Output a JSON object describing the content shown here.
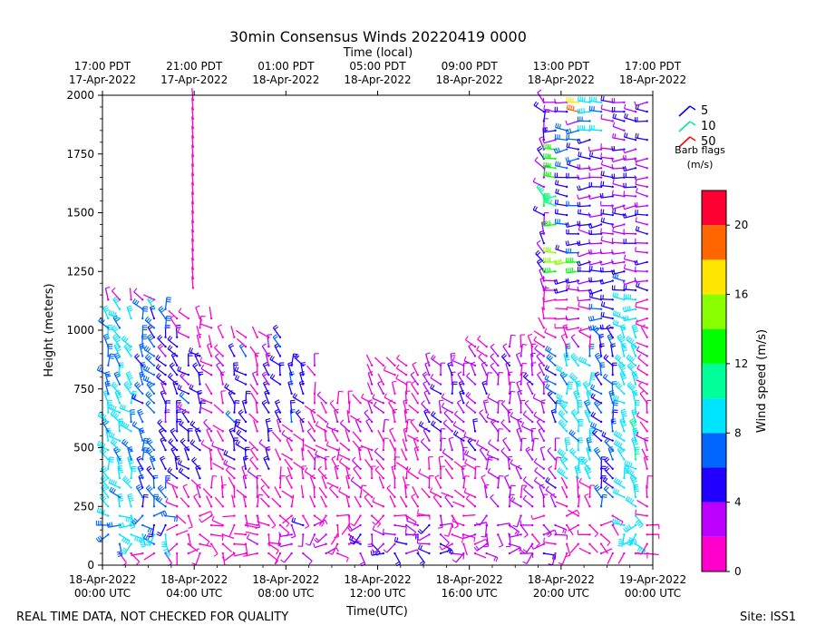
{
  "chart_data": {
    "type": "wind-barb-time-height",
    "title": "30min Consensus Winds 20220419 0000",
    "top_axis_label": "Time (local)",
    "xlabel": "Time(UTC)",
    "ylabel": "Height (meters)",
    "xlim_hours": [
      0,
      24
    ],
    "ylim": [
      0,
      2000
    ],
    "y_ticks": [
      0,
      250,
      500,
      750,
      1000,
      1250,
      1500,
      1750,
      2000
    ],
    "x_ticks": [
      {
        "hour": 0,
        "line1": "18-Apr-2022",
        "line2": "00:00 UTC"
      },
      {
        "hour": 4,
        "line1": "18-Apr-2022",
        "line2": "04:00 UTC"
      },
      {
        "hour": 8,
        "line1": "18-Apr-2022",
        "line2": "08:00 UTC"
      },
      {
        "hour": 12,
        "line1": "18-Apr-2022",
        "line2": "12:00 UTC"
      },
      {
        "hour": 16,
        "line1": "18-Apr-2022",
        "line2": "16:00 UTC"
      },
      {
        "hour": 20,
        "line1": "18-Apr-2022",
        "line2": "20:00 UTC"
      },
      {
        "hour": 24,
        "line1": "19-Apr-2022",
        "line2": "00:00 UTC"
      }
    ],
    "top_ticks": [
      {
        "hour": 0,
        "line1": "17:00 PDT",
        "line2": "17-Apr-2022"
      },
      {
        "hour": 4,
        "line1": "21:00 PDT",
        "line2": "17-Apr-2022"
      },
      {
        "hour": 8,
        "line1": "01:00 PDT",
        "line2": "18-Apr-2022"
      },
      {
        "hour": 12,
        "line1": "05:00 PDT",
        "line2": "18-Apr-2022"
      },
      {
        "hour": 16,
        "line1": "09:00 PDT",
        "line2": "18-Apr-2022"
      },
      {
        "hour": 20,
        "line1": "13:00 PDT",
        "line2": "18-Apr-2022"
      },
      {
        "hour": 24,
        "line1": "17:00 PDT",
        "line2": "18-Apr-2022"
      }
    ],
    "barb_legend": {
      "entries": [
        {
          "label": "5",
          "color": "#0000ff"
        },
        {
          "label": "10",
          "color": "#00e0b0"
        },
        {
          "label": "50",
          "color": "#ff0000"
        }
      ],
      "title_line1": "Barb flags",
      "title_line2": "(m/s)"
    },
    "colorbar": {
      "label": "Wind speed (m/s)",
      "range": [
        0,
        22
      ],
      "ticks": [
        0,
        4,
        8,
        12,
        16,
        20
      ],
      "bins": [
        {
          "from": 0,
          "to": 2,
          "color": "#ff00cc"
        },
        {
          "from": 2,
          "to": 4,
          "color": "#bb00ff"
        },
        {
          "from": 4,
          "to": 6,
          "color": "#2200ff"
        },
        {
          "from": 6,
          "to": 8,
          "color": "#0066ff"
        },
        {
          "from": 8,
          "to": 10,
          "color": "#00e5ff"
        },
        {
          "from": 10,
          "to": 12,
          "color": "#00ff99"
        },
        {
          "from": 12,
          "to": 14,
          "color": "#00ff00"
        },
        {
          "from": 14,
          "to": 16,
          "color": "#88ff00"
        },
        {
          "from": 16,
          "to": 18,
          "color": "#ffe600"
        },
        {
          "from": 18,
          "to": 20,
          "color": "#ff6600"
        },
        {
          "from": 20,
          "to": 22,
          "color": "#ff0033"
        }
      ]
    },
    "speed_regimes": [
      {
        "t0": 0.0,
        "t1": 2.8,
        "h0": 60,
        "h1": 1100,
        "speed": 8.5
      },
      {
        "t0": 1.6,
        "t1": 3.0,
        "h0": 150,
        "h1": 1050,
        "speed": 6.5
      },
      {
        "t0": 2.6,
        "t1": 3.6,
        "h0": 350,
        "h1": 1000,
        "speed": 5.0
      },
      {
        "t0": 3.6,
        "t1": 4.4,
        "h0": 350,
        "h1": 900,
        "speed": 5.0
      },
      {
        "t0": 5.6,
        "t1": 6.4,
        "h0": 400,
        "h1": 900,
        "speed": 5.0
      },
      {
        "t0": 6.8,
        "t1": 7.6,
        "h0": 350,
        "h1": 950,
        "speed": 4.2
      },
      {
        "t0": 7.6,
        "t1": 8.8,
        "h0": 600,
        "h1": 1000,
        "speed": 5.0
      },
      {
        "t0": 8.0,
        "t1": 9.8,
        "h0": 40,
        "h1": 200,
        "speed": 3.2
      },
      {
        "t0": 11.0,
        "t1": 15.0,
        "h0": 40,
        "h1": 200,
        "speed": 3.8
      },
      {
        "t0": 14.2,
        "t1": 17.2,
        "h0": 450,
        "h1": 900,
        "speed": 3.2
      },
      {
        "t0": 16.5,
        "t1": 19.8,
        "h0": 40,
        "h1": 900,
        "speed": 3.0
      },
      {
        "t0": 19.6,
        "t1": 21.2,
        "h0": 600,
        "h1": 900,
        "speed": 6.5
      },
      {
        "t0": 19.8,
        "t1": 22.0,
        "h0": 350,
        "h1": 900,
        "speed": 8.8
      },
      {
        "t0": 21.4,
        "t1": 23.2,
        "h0": 250,
        "h1": 1250,
        "speed": 6.0
      },
      {
        "t0": 22.6,
        "t1": 23.6,
        "h0": 60,
        "h1": 1150,
        "speed": 9.0
      },
      {
        "t0": 19.6,
        "t1": 20.8,
        "h0": 1250,
        "h1": 1500,
        "speed": 14.5
      },
      {
        "t0": 19.0,
        "t1": 20.2,
        "h0": 1500,
        "h1": 1600,
        "speed": 11.0
      },
      {
        "t0": 19.6,
        "t1": 21.0,
        "h0": 1600,
        "h1": 1800,
        "speed": 13.0
      },
      {
        "t0": 20.2,
        "t1": 21.2,
        "h0": 1300,
        "h1": 1850,
        "speed": 6.0
      },
      {
        "t0": 20.6,
        "t1": 21.6,
        "h0": 1900,
        "h1": 2000,
        "speed": 19.0
      },
      {
        "t0": 21.2,
        "t1": 22.0,
        "h0": 1850,
        "h1": 1980,
        "speed": 8.5
      }
    ],
    "tall_column": {
      "t": 3.95,
      "h0": 1180,
      "h1": 2000,
      "speed": 1.0
    }
  },
  "footer": {
    "left": "REAL TIME DATA, NOT CHECKED FOR QUALITY",
    "right": "Site: ISS1"
  }
}
